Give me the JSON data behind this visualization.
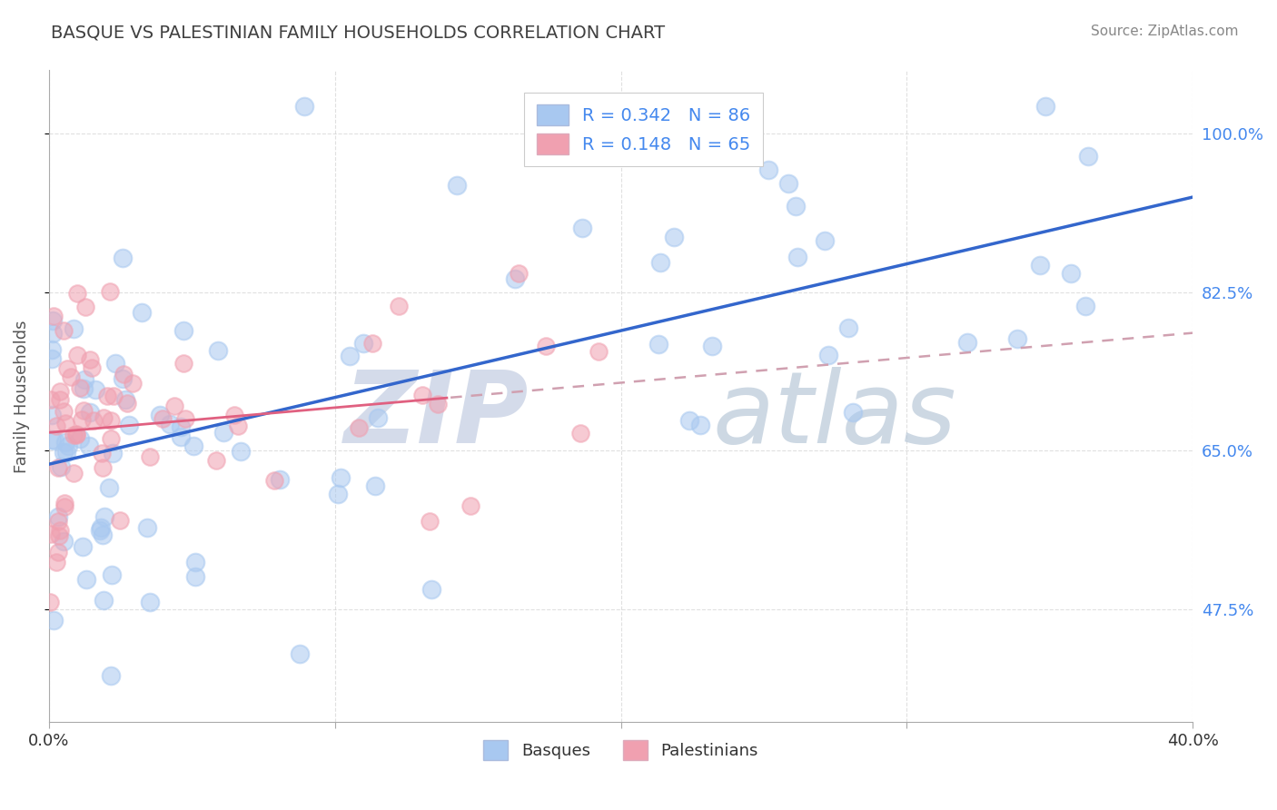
{
  "title": "BASQUE VS PALESTINIAN FAMILY HOUSEHOLDS CORRELATION CHART",
  "source": "Source: ZipAtlas.com",
  "ylabel": "Family Households",
  "xmin": 0.0,
  "xmax": 40.0,
  "ymin": 35.0,
  "ymax": 107.0,
  "yticks": [
    47.5,
    65.0,
    82.5,
    100.0
  ],
  "basque_color": "#a8c8f0",
  "palestinian_color": "#f0a0b0",
  "basque_line_color": "#3366cc",
  "palestinian_line_solid_color": "#e06080",
  "palestinian_line_dash_color": "#d0a0b0",
  "grid_color": "#cccccc",
  "background_color": "#ffffff",
  "title_color": "#404040",
  "right_axis_color": "#4488ee",
  "basque_N": 86,
  "palestinian_N": 65,
  "basque_R": 0.342,
  "palestinian_R": 0.148,
  "basque_trend_y0": 63.5,
  "basque_trend_y1": 93.0,
  "palestinian_trend_y0": 67.0,
  "palestinian_trend_y1": 78.0,
  "watermark_zip_color": "#d0d8e8",
  "watermark_atlas_color": "#b8c8d8"
}
